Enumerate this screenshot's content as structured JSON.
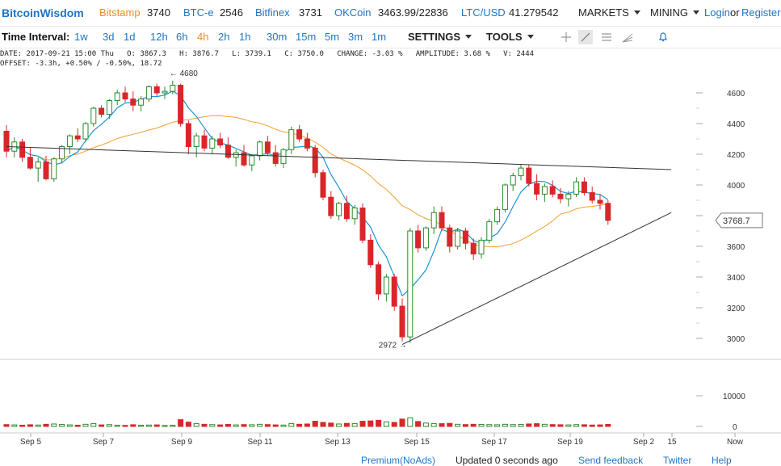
{
  "header": {
    "brand": "BitcoinWisdom",
    "exchanges": [
      {
        "name": "Bitstamp",
        "value": "3740",
        "active": true
      },
      {
        "name": "BTC-e",
        "value": "2546",
        "active": false
      },
      {
        "name": "Bitfinex",
        "value": "3731",
        "active": false
      },
      {
        "name": "OKCoin",
        "value": "3463.99/22836",
        "active": false
      },
      {
        "name": "LTC/USD",
        "value": "41.279542",
        "active": false
      }
    ],
    "markets_label": "MARKETS",
    "mining_label": "MINING",
    "login_label": "Login",
    "or_label": "or",
    "register_label": "Register"
  },
  "toolbar": {
    "interval_label": "Time Interval:",
    "intervals": [
      {
        "label": "1w",
        "active": false
      },
      {
        "label": "3d",
        "active": false
      },
      {
        "label": "1d",
        "active": false
      },
      {
        "label": "12h",
        "active": false
      },
      {
        "label": "6h",
        "active": false
      },
      {
        "label": "4h",
        "active": true
      },
      {
        "label": "2h",
        "active": false
      },
      {
        "label": "1h",
        "active": false
      },
      {
        "label": "30m",
        "active": false
      },
      {
        "label": "15m",
        "active": false
      },
      {
        "label": "5m",
        "active": false
      },
      {
        "label": "3m",
        "active": false
      },
      {
        "label": "1m",
        "active": false
      }
    ],
    "settings_label": "SETTINGS",
    "tools_label": "TOOLS",
    "tool_icons": [
      "crosshair-icon",
      "line-draw-icon",
      "horizontal-lines-icon",
      "fan-icon",
      "bell-icon"
    ]
  },
  "info": {
    "line1": "DATE: 2017-09-21 15:00 Thu   O: 3867.3   H: 3876.7   L: 3739.1   C: 3750.0   CHANGE: -3.03 %   AMPLITUDE: 3.68 %   V: 2444",
    "line2": "OFFSET: -3.3h, +0.50% / -0.50%, 18.72"
  },
  "chart_data": {
    "type": "candlestick",
    "price_ticks": [
      "4600",
      "4400",
      "4200",
      "4000",
      "3800",
      "3600",
      "3400",
      "3200",
      "3000"
    ],
    "volume_ticks": [
      "10000",
      "0"
    ],
    "x_ticks": [
      "Sep 5",
      "Sep 7",
      "Sep 9",
      "Sep 11",
      "Sep 13",
      "Sep 15",
      "Sep 17",
      "Sep 19",
      "Sep 2",
      "15",
      "Now"
    ],
    "current_price_label": "3768.7",
    "high_annotation": "4680",
    "low_annotation": "2972",
    "colors": {
      "up": "#2a8a2a",
      "down": "#d9262a",
      "ma_fast": "#1a96d4",
      "ma_slow": "#f0a030",
      "trendline": "#333333"
    },
    "candles": [
      [
        4350,
        4390,
        4180,
        4220,
        600
      ],
      [
        4220,
        4310,
        4180,
        4280,
        500
      ],
      [
        4280,
        4300,
        4150,
        4180,
        400
      ],
      [
        4180,
        4240,
        4100,
        4110,
        550
      ],
      [
        4110,
        4180,
        4020,
        4150,
        450
      ],
      [
        4150,
        4190,
        4030,
        4040,
        700
      ],
      [
        4040,
        4180,
        4020,
        4170,
        800
      ],
      [
        4170,
        4260,
        4140,
        4250,
        650
      ],
      [
        4250,
        4330,
        4200,
        4320,
        500
      ],
      [
        4320,
        4370,
        4280,
        4300,
        400
      ],
      [
        4300,
        4410,
        4280,
        4400,
        700
      ],
      [
        4400,
        4510,
        4380,
        4500,
        900
      ],
      [
        4500,
        4520,
        4440,
        4460,
        500
      ],
      [
        4460,
        4560,
        4430,
        4550,
        600
      ],
      [
        4550,
        4620,
        4520,
        4600,
        400
      ],
      [
        4600,
        4640,
        4540,
        4560,
        350
      ],
      [
        4560,
        4610,
        4480,
        4520,
        550
      ],
      [
        4520,
        4580,
        4480,
        4560,
        400
      ],
      [
        4560,
        4650,
        4540,
        4640,
        450
      ],
      [
        4640,
        4660,
        4580,
        4600,
        500
      ],
      [
        4600,
        4640,
        4560,
        4610,
        300
      ],
      [
        4610,
        4680,
        4590,
        4650,
        400
      ],
      [
        4650,
        4660,
        4380,
        4400,
        2200
      ],
      [
        4400,
        4420,
        4200,
        4250,
        1400
      ],
      [
        4250,
        4340,
        4180,
        4320,
        900
      ],
      [
        4320,
        4360,
        4220,
        4240,
        700
      ],
      [
        4240,
        4320,
        4200,
        4300,
        600
      ],
      [
        4300,
        4340,
        4240,
        4260,
        500
      ],
      [
        4260,
        4310,
        4170,
        4180,
        650
      ],
      [
        4180,
        4230,
        4120,
        4210,
        500
      ],
      [
        4210,
        4260,
        4120,
        4130,
        600
      ],
      [
        4130,
        4200,
        4090,
        4190,
        550
      ],
      [
        4190,
        4290,
        4160,
        4280,
        700
      ],
      [
        4280,
        4320,
        4190,
        4210,
        600
      ],
      [
        4210,
        4260,
        4120,
        4140,
        500
      ],
      [
        4140,
        4240,
        4110,
        4230,
        450
      ],
      [
        4230,
        4380,
        4200,
        4360,
        900
      ],
      [
        4360,
        4390,
        4280,
        4300,
        700
      ],
      [
        4300,
        4340,
        4220,
        4240,
        800
      ],
      [
        4240,
        4260,
        4050,
        4080,
        1700
      ],
      [
        4080,
        4100,
        3900,
        3920,
        1300
      ],
      [
        3920,
        3960,
        3780,
        3800,
        1100
      ],
      [
        3800,
        3890,
        3770,
        3880,
        800
      ],
      [
        3880,
        3930,
        3760,
        3780,
        1000
      ],
      [
        3780,
        3870,
        3740,
        3850,
        900
      ],
      [
        3850,
        3880,
        3620,
        3640,
        1700
      ],
      [
        3640,
        3680,
        3460,
        3480,
        1800
      ],
      [
        3480,
        3500,
        3250,
        3290,
        2000
      ],
      [
        3290,
        3420,
        3240,
        3400,
        1500
      ],
      [
        3400,
        3420,
        3180,
        3210,
        1300
      ],
      [
        3210,
        3260,
        2980,
        3010,
        2400
      ],
      [
        3010,
        3720,
        2972,
        3700,
        2800
      ],
      [
        3700,
        3740,
        3560,
        3590,
        1600
      ],
      [
        3590,
        3730,
        3570,
        3720,
        1100
      ],
      [
        3720,
        3860,
        3680,
        3820,
        900
      ],
      [
        3820,
        3860,
        3700,
        3720,
        900
      ],
      [
        3720,
        3740,
        3560,
        3600,
        1000
      ],
      [
        3600,
        3720,
        3580,
        3700,
        700
      ],
      [
        3700,
        3720,
        3580,
        3620,
        600
      ],
      [
        3620,
        3650,
        3510,
        3550,
        700
      ],
      [
        3550,
        3660,
        3520,
        3640,
        650
      ],
      [
        3640,
        3780,
        3620,
        3760,
        600
      ],
      [
        3760,
        3860,
        3740,
        3840,
        550
      ],
      [
        3840,
        4010,
        3820,
        4000,
        700
      ],
      [
        4000,
        4080,
        3960,
        4060,
        600
      ],
      [
        4060,
        4130,
        4030,
        4110,
        650
      ],
      [
        4110,
        4130,
        3990,
        4010,
        800
      ],
      [
        4010,
        4070,
        3900,
        3940,
        900
      ],
      [
        3940,
        4010,
        3890,
        3990,
        700
      ],
      [
        3990,
        4030,
        3920,
        3940,
        600
      ],
      [
        3940,
        3980,
        3880,
        3910,
        550
      ],
      [
        3910,
        3960,
        3860,
        3940,
        500
      ],
      [
        3940,
        4050,
        3920,
        4020,
        600
      ],
      [
        4020,
        4050,
        3930,
        3950,
        550
      ],
      [
        3950,
        3990,
        3880,
        3900,
        450
      ],
      [
        3900,
        3940,
        3840,
        3880,
        500
      ],
      [
        3880,
        3900,
        3740,
        3769,
        650
      ]
    ],
    "trendlines": [
      {
        "from": [
          0,
          4250
        ],
        "to": [
          84,
          4100
        ]
      },
      {
        "from": [
          50,
          2960
        ],
        "to": [
          84,
          3820
        ]
      }
    ]
  },
  "footer": {
    "premium": "Premium(NoAds)",
    "updated": "Updated 0 seconds ago",
    "feedback": "Send feedback",
    "twitter": "Twitter",
    "help": "Help"
  }
}
